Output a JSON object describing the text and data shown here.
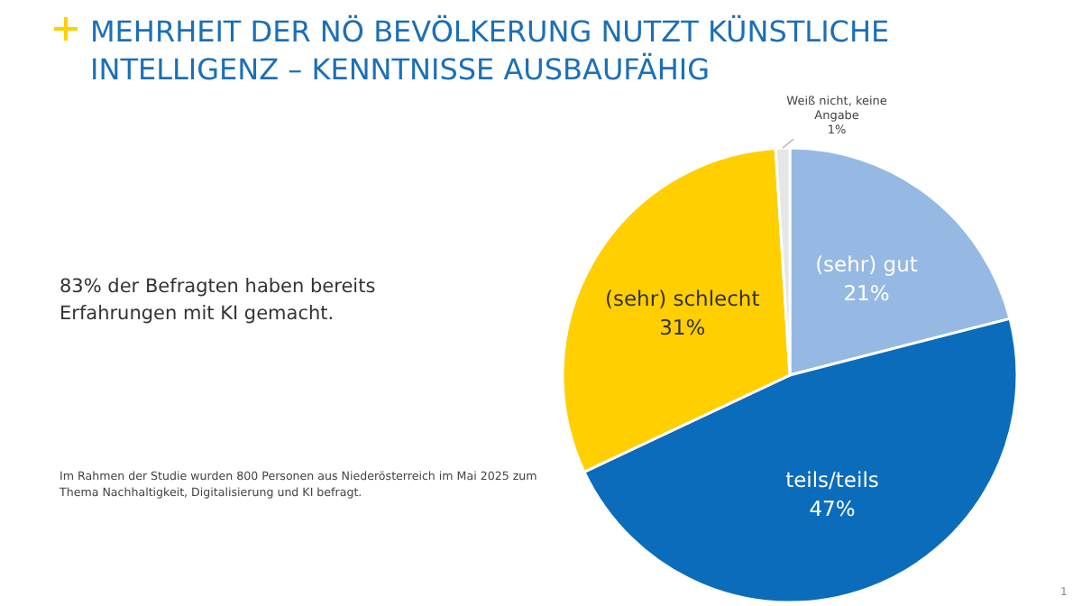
{
  "chart_data": {
    "type": "pie",
    "title": "MEHRHEIT DER NÖ BEVÖLKERUNG NUTZT KÜNSTLICHE INTELLIGENZ – KENNTNISSE AUSBAUFÄHIG",
    "categories": [
      "(sehr) gut",
      "teils/teils",
      "(sehr) schlecht",
      "Weiß nicht, keine Angabe"
    ],
    "values": [
      21,
      47,
      31,
      1
    ],
    "value_labels": [
      "21%",
      "47%",
      "31%",
      "1%"
    ],
    "colors": [
      "#95b9e3",
      "#0b6cbc",
      "#ffcf00",
      "#e6e6e6"
    ],
    "annotations": [
      "83% der Befragten haben bereits Erfahrungen mit KI gemacht.",
      "Im Rahmen der Studie wurden 800 Personen aus Niederösterreich im Mai 2025 zum Thema Nachhaltigkeit, Digitalisierung und KI befragt.",
      "1"
    ]
  }
}
